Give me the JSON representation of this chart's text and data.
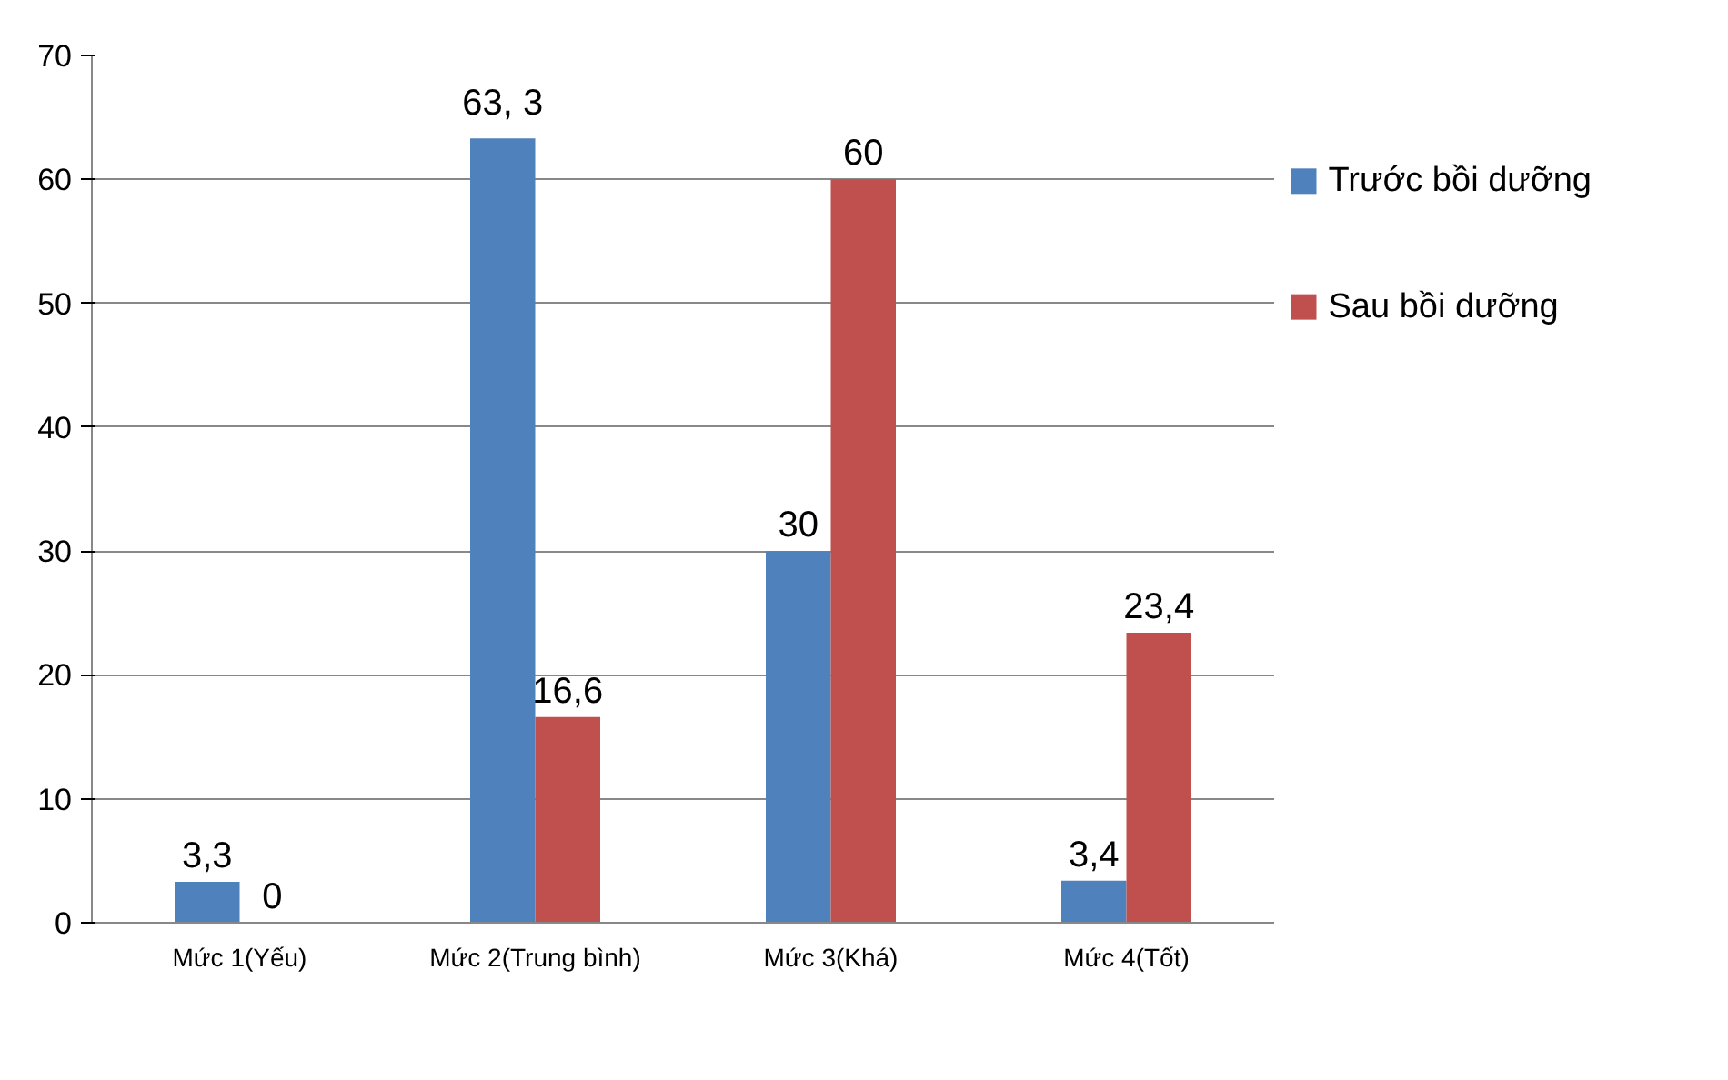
{
  "chart_data": {
    "type": "bar",
    "categories": [
      "Mức 1(Yếu)",
      "Mức 2(Trung bình)",
      "Mức 3(Khá)",
      "Mức 4(Tốt)"
    ],
    "series": [
      {
        "name": "Trước bồi dưỡng",
        "color": "#4f81bd",
        "values": [
          3.3,
          63.3,
          30,
          3.4
        ],
        "value_labels": [
          "3,3",
          "63, 3",
          "30",
          "3,4"
        ]
      },
      {
        "name": "Sau bồi dưỡng",
        "color": "#c0504d",
        "values": [
          0,
          16.6,
          60,
          23.4
        ],
        "value_labels": [
          "0",
          "16,6",
          "60",
          "23,4"
        ]
      }
    ],
    "ylim": [
      0,
      70
    ],
    "yticks": [
      0,
      10,
      20,
      30,
      40,
      50,
      60,
      70
    ],
    "grid": "y",
    "legend": "right"
  }
}
